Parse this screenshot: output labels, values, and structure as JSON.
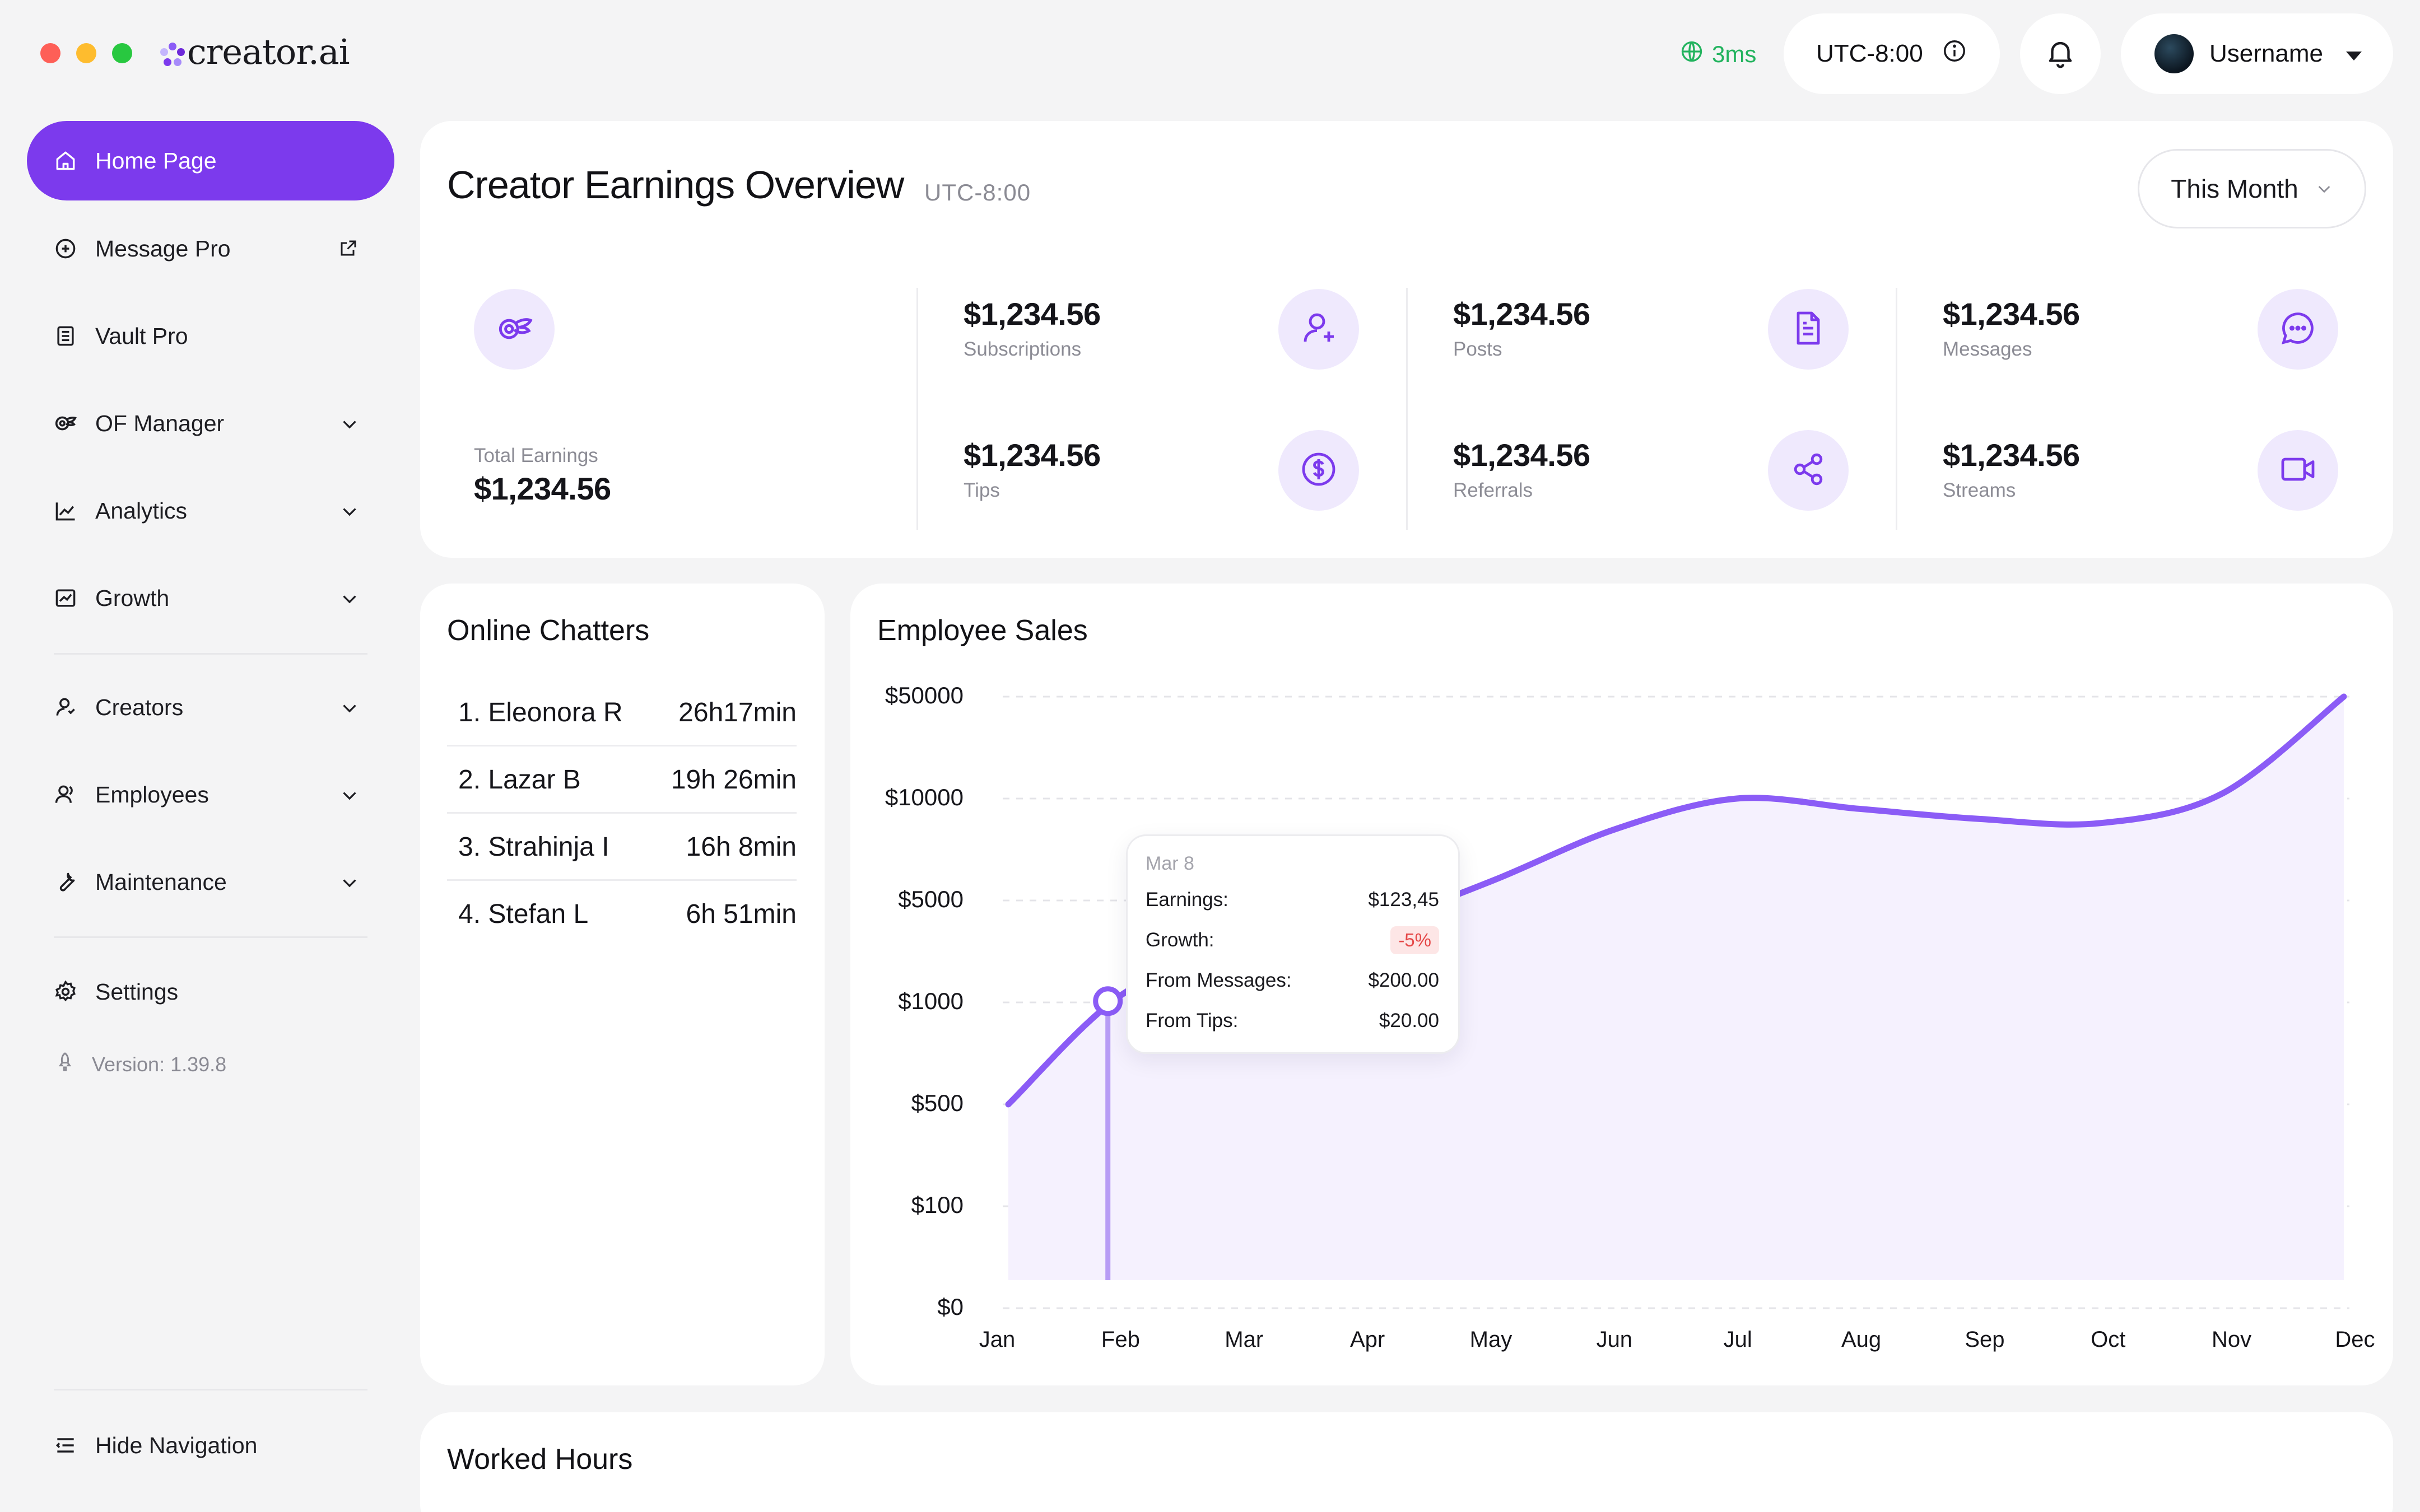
{
  "window": {
    "controls": [
      "#fe5f57",
      "#febc2e",
      "#28c840"
    ]
  },
  "app": {
    "name": "creator.ai",
    "accent": "#7c3aed"
  },
  "topbar": {
    "latency": "3ms",
    "timezone": "UTC-8:00",
    "info_icon": "info-icon",
    "notifications_icon": "bell-icon",
    "user": {
      "name": "Username"
    }
  },
  "sidebar": {
    "items": [
      {
        "label": "Home Page",
        "icon": "home-icon",
        "active": true
      },
      {
        "label": "Message Pro",
        "icon": "message-icon",
        "external": true
      },
      {
        "label": "Vault Pro",
        "icon": "vault-icon"
      },
      {
        "label": "OF Manager",
        "icon": "manager-icon",
        "expandable": true
      },
      {
        "label": "Analytics",
        "icon": "analytics-icon",
        "expandable": true
      },
      {
        "label": "Growth",
        "icon": "growth-icon",
        "expandable": true
      },
      {
        "label": "Creators",
        "icon": "creators-icon",
        "expandable": true
      },
      {
        "label": "Employees",
        "icon": "employees-icon",
        "expandable": true
      },
      {
        "label": "Maintenance",
        "icon": "wrench-icon",
        "expandable": true
      },
      {
        "label": "Settings",
        "icon": "gear-icon"
      }
    ],
    "version": "Version: 1.39.8",
    "hide_nav": "Hide Navigation"
  },
  "overview": {
    "title": "Creator Earnings Overview",
    "timezone": "UTC-8:00",
    "period": "This Month",
    "total": {
      "label": "Total Earnings",
      "value": "$1,234.56"
    },
    "stats": [
      {
        "value": "$1,234.56",
        "label": "Subscriptions",
        "icon": "user-add-icon"
      },
      {
        "value": "$1,234.56",
        "label": "Tips",
        "icon": "dollar-icon"
      },
      {
        "value": "$1,234.56",
        "label": "Posts",
        "icon": "document-icon"
      },
      {
        "value": "$1,234.56",
        "label": "Referrals",
        "icon": "share-icon"
      },
      {
        "value": "$1,234.56",
        "label": "Messages",
        "icon": "chat-icon"
      },
      {
        "value": "$1,234.56",
        "label": "Streams",
        "icon": "video-icon"
      }
    ]
  },
  "chatters": {
    "title": "Online Chatters",
    "rows": [
      {
        "name": "1. Eleonora R",
        "time": "26h17min"
      },
      {
        "name": "2. Lazar B",
        "time": "19h 26min"
      },
      {
        "name": "3. Strahinja I",
        "time": "16h 8min"
      },
      {
        "name": "4. Stefan L",
        "time": "6h 51min"
      }
    ]
  },
  "sales": {
    "title": "Employee Sales",
    "tooltip": {
      "date": "Mar 8",
      "rows": [
        {
          "label": "Earnings:",
          "value": "$123,45"
        },
        {
          "label": "Growth:",
          "value": "-5%"
        },
        {
          "label": "From Messages:",
          "value": "$200.00"
        },
        {
          "label": "From Tips:",
          "value": "$20.00"
        }
      ]
    }
  },
  "worked": {
    "title": "Worked Hours"
  },
  "chart_data": {
    "type": "area",
    "title": "Employee Sales",
    "categories": [
      "Jan",
      "Feb",
      "Mar",
      "Apr",
      "May",
      "Jun",
      "Jul",
      "Aug",
      "Sep",
      "Oct",
      "Nov",
      "Dec"
    ],
    "y_ticks": [
      "$50000",
      "$10000",
      "$5000",
      "$1000",
      "$500",
      "$100",
      "$0"
    ],
    "series": [
      {
        "color": "#8b5cf6",
        "points": [
          {
            "x": "Jan",
            "y": 500
          },
          {
            "x": "Feb",
            "y": 1500
          },
          {
            "x": "Mar",
            "y": 2500
          },
          {
            "x": "Apr",
            "y": 4000
          },
          {
            "x": "May",
            "y": 6000
          },
          {
            "x": "Jun",
            "y": 8500
          },
          {
            "x": "Jul",
            "y": 10000
          },
          {
            "x": "Aug",
            "y": 9500
          },
          {
            "x": "Sep",
            "y": 9000
          },
          {
            "x": "Oct",
            "y": 8800
          },
          {
            "x": "Nov",
            "y": 12000
          },
          {
            "x": "Dec",
            "y": 50000
          }
        ]
      }
    ],
    "highlight": {
      "label": "Mar 8"
    },
    "grid": true
  }
}
